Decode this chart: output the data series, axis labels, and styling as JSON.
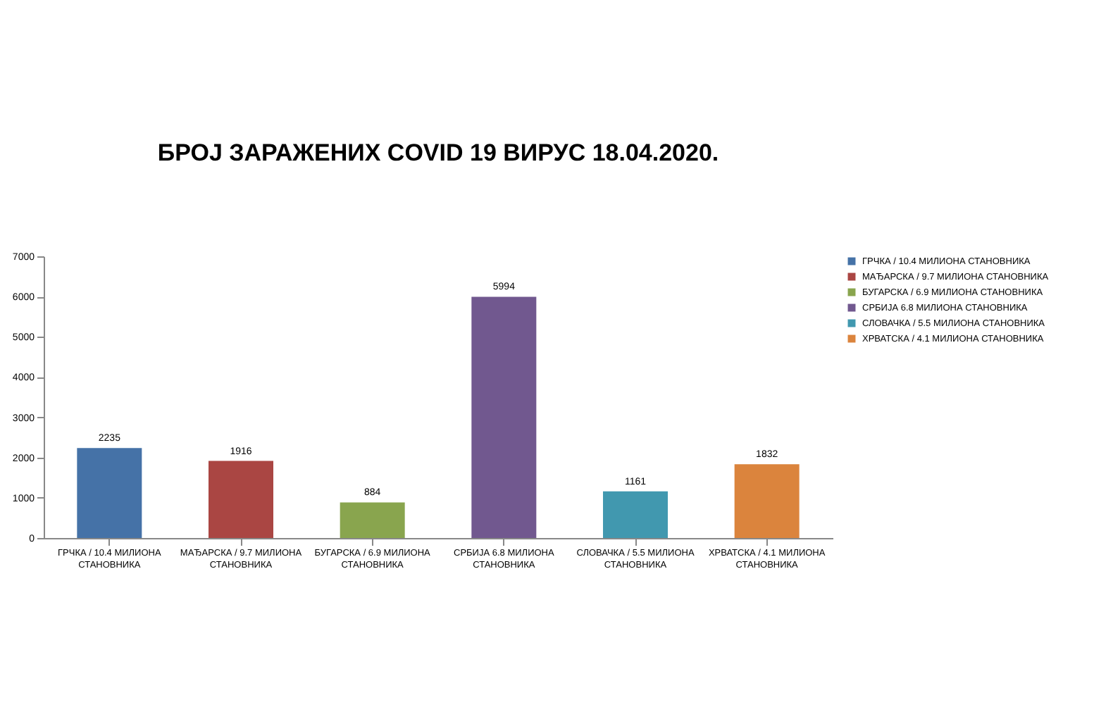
{
  "chart_data": {
    "type": "bar",
    "title": "БРОЈ ЗАРАЖЕНИХ COVID 19 ВИРУС 18.04.2020.",
    "categories": [
      "ГРЧКА / 10.4 МИЛИОНА СТАНОВНИКА",
      "МАЂАРСКА / 9.7 МИЛИОНА СТАНОВНИКА",
      "БУГАРСКА / 6.9 МИЛИОНА СТАНОВНИКА",
      "СРБИЈА 6.8 МИЛИОНА СТАНОВНИКА",
      "СЛОВАЧКА / 5.5 МИЛИОНА СТАНОВНИКА",
      "ХРВАТСКА / 4.1 МИЛИОНА СТАНОВНИКА"
    ],
    "series": [
      {
        "name": "ГРЧКА / 10.4 МИЛИОНА СТАНОВНИКА",
        "color": "#4572a7",
        "values": [
          2235,
          null,
          null,
          null,
          null,
          null
        ]
      },
      {
        "name": "МАЂАРСКА / 9.7 МИЛИОНА СТАНОВНИКА",
        "color": "#aa4643",
        "values": [
          null,
          1916,
          null,
          null,
          null,
          null
        ]
      },
      {
        "name": "БУГАРСКА / 6.9 МИЛИОНА СТАНОВНИКА",
        "color": "#89a54e",
        "values": [
          null,
          null,
          884,
          null,
          null,
          null
        ]
      },
      {
        "name": "СРБИЈА 6.8 МИЛИОНА СТАНОВНИКА",
        "color": "#71588f",
        "values": [
          null,
          null,
          null,
          5994,
          null,
          null
        ]
      },
      {
        "name": "СЛОВАЧКА / 5.5 МИЛИОНА СТАНОВНИКА",
        "color": "#4198af",
        "values": [
          null,
          null,
          null,
          null,
          1161,
          null
        ]
      },
      {
        "name": "ХРВАТСКА / 4.1 МИЛИОНА СТАНОВНИКА",
        "color": "#db843d",
        "values": [
          null,
          null,
          null,
          null,
          null,
          1832
        ]
      }
    ],
    "ylim": [
      0,
      7000
    ],
    "yticks": [
      0,
      1000,
      2000,
      3000,
      4000,
      5000,
      6000,
      7000
    ],
    "data_labels": true,
    "grid": false,
    "legend": "right"
  }
}
